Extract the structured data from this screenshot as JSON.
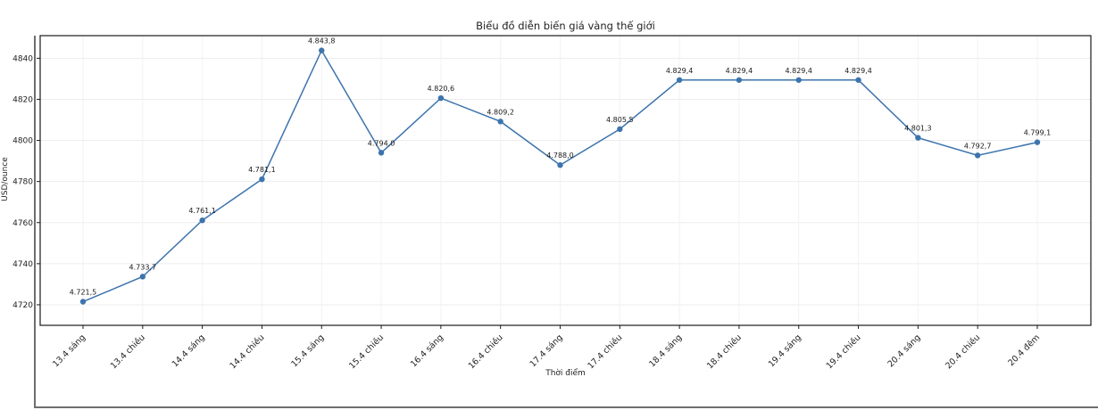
{
  "page": {
    "title": "Biểu đồ diễn biến giá vàng thế giới"
  },
  "chart_data": {
    "type": "line",
    "title": "Biểu đồ diễn biến giá vàng thế giới",
    "xlabel": "Thời điểm",
    "ylabel": "USD/ounce",
    "categories": [
      "13.4 sáng",
      "13.4 chiều",
      "14.4 sáng",
      "14.4 chiều",
      "15.4 sáng",
      "15.4 chiều",
      "16.4 sáng",
      "16.4 chiều",
      "17.4 sáng",
      "17.4 chiều",
      "18.4 sáng",
      "18.4 chiều",
      "19.4 sáng",
      "19.4 chiều",
      "20.4 sáng",
      "20.4 chiều",
      "20.4 đêm"
    ],
    "values": [
      4721.5,
      4733.7,
      4761.1,
      4781.1,
      4843.8,
      4794.0,
      4820.6,
      4809.2,
      4788.0,
      4805.5,
      4829.4,
      4829.4,
      4829.4,
      4829.4,
      4801.3,
      4792.7,
      4799.1
    ],
    "point_labels": [
      "4.721,5",
      "4.733,7",
      "4.761,1",
      "4.781,1",
      "4.843,8",
      "4.794,0",
      "4.820,6",
      "4.809,2",
      "4.788,0",
      "4.805,5",
      "4.829,4",
      "4.829,4",
      "4.829,4",
      "4.829,4",
      "4.801,3",
      "4.792,7",
      "4.799,1"
    ],
    "yticks": [
      4720,
      4740,
      4760,
      4780,
      4800,
      4820,
      4840
    ],
    "ylim": [
      4710,
      4851
    ],
    "grid": true,
    "legend": "none",
    "line_color": "#3d74ad",
    "marker_color": "#3d74ad",
    "axis_color": "#1a1a1a",
    "grid_color": "#ededed",
    "label_color": "#1f1f1f"
  }
}
